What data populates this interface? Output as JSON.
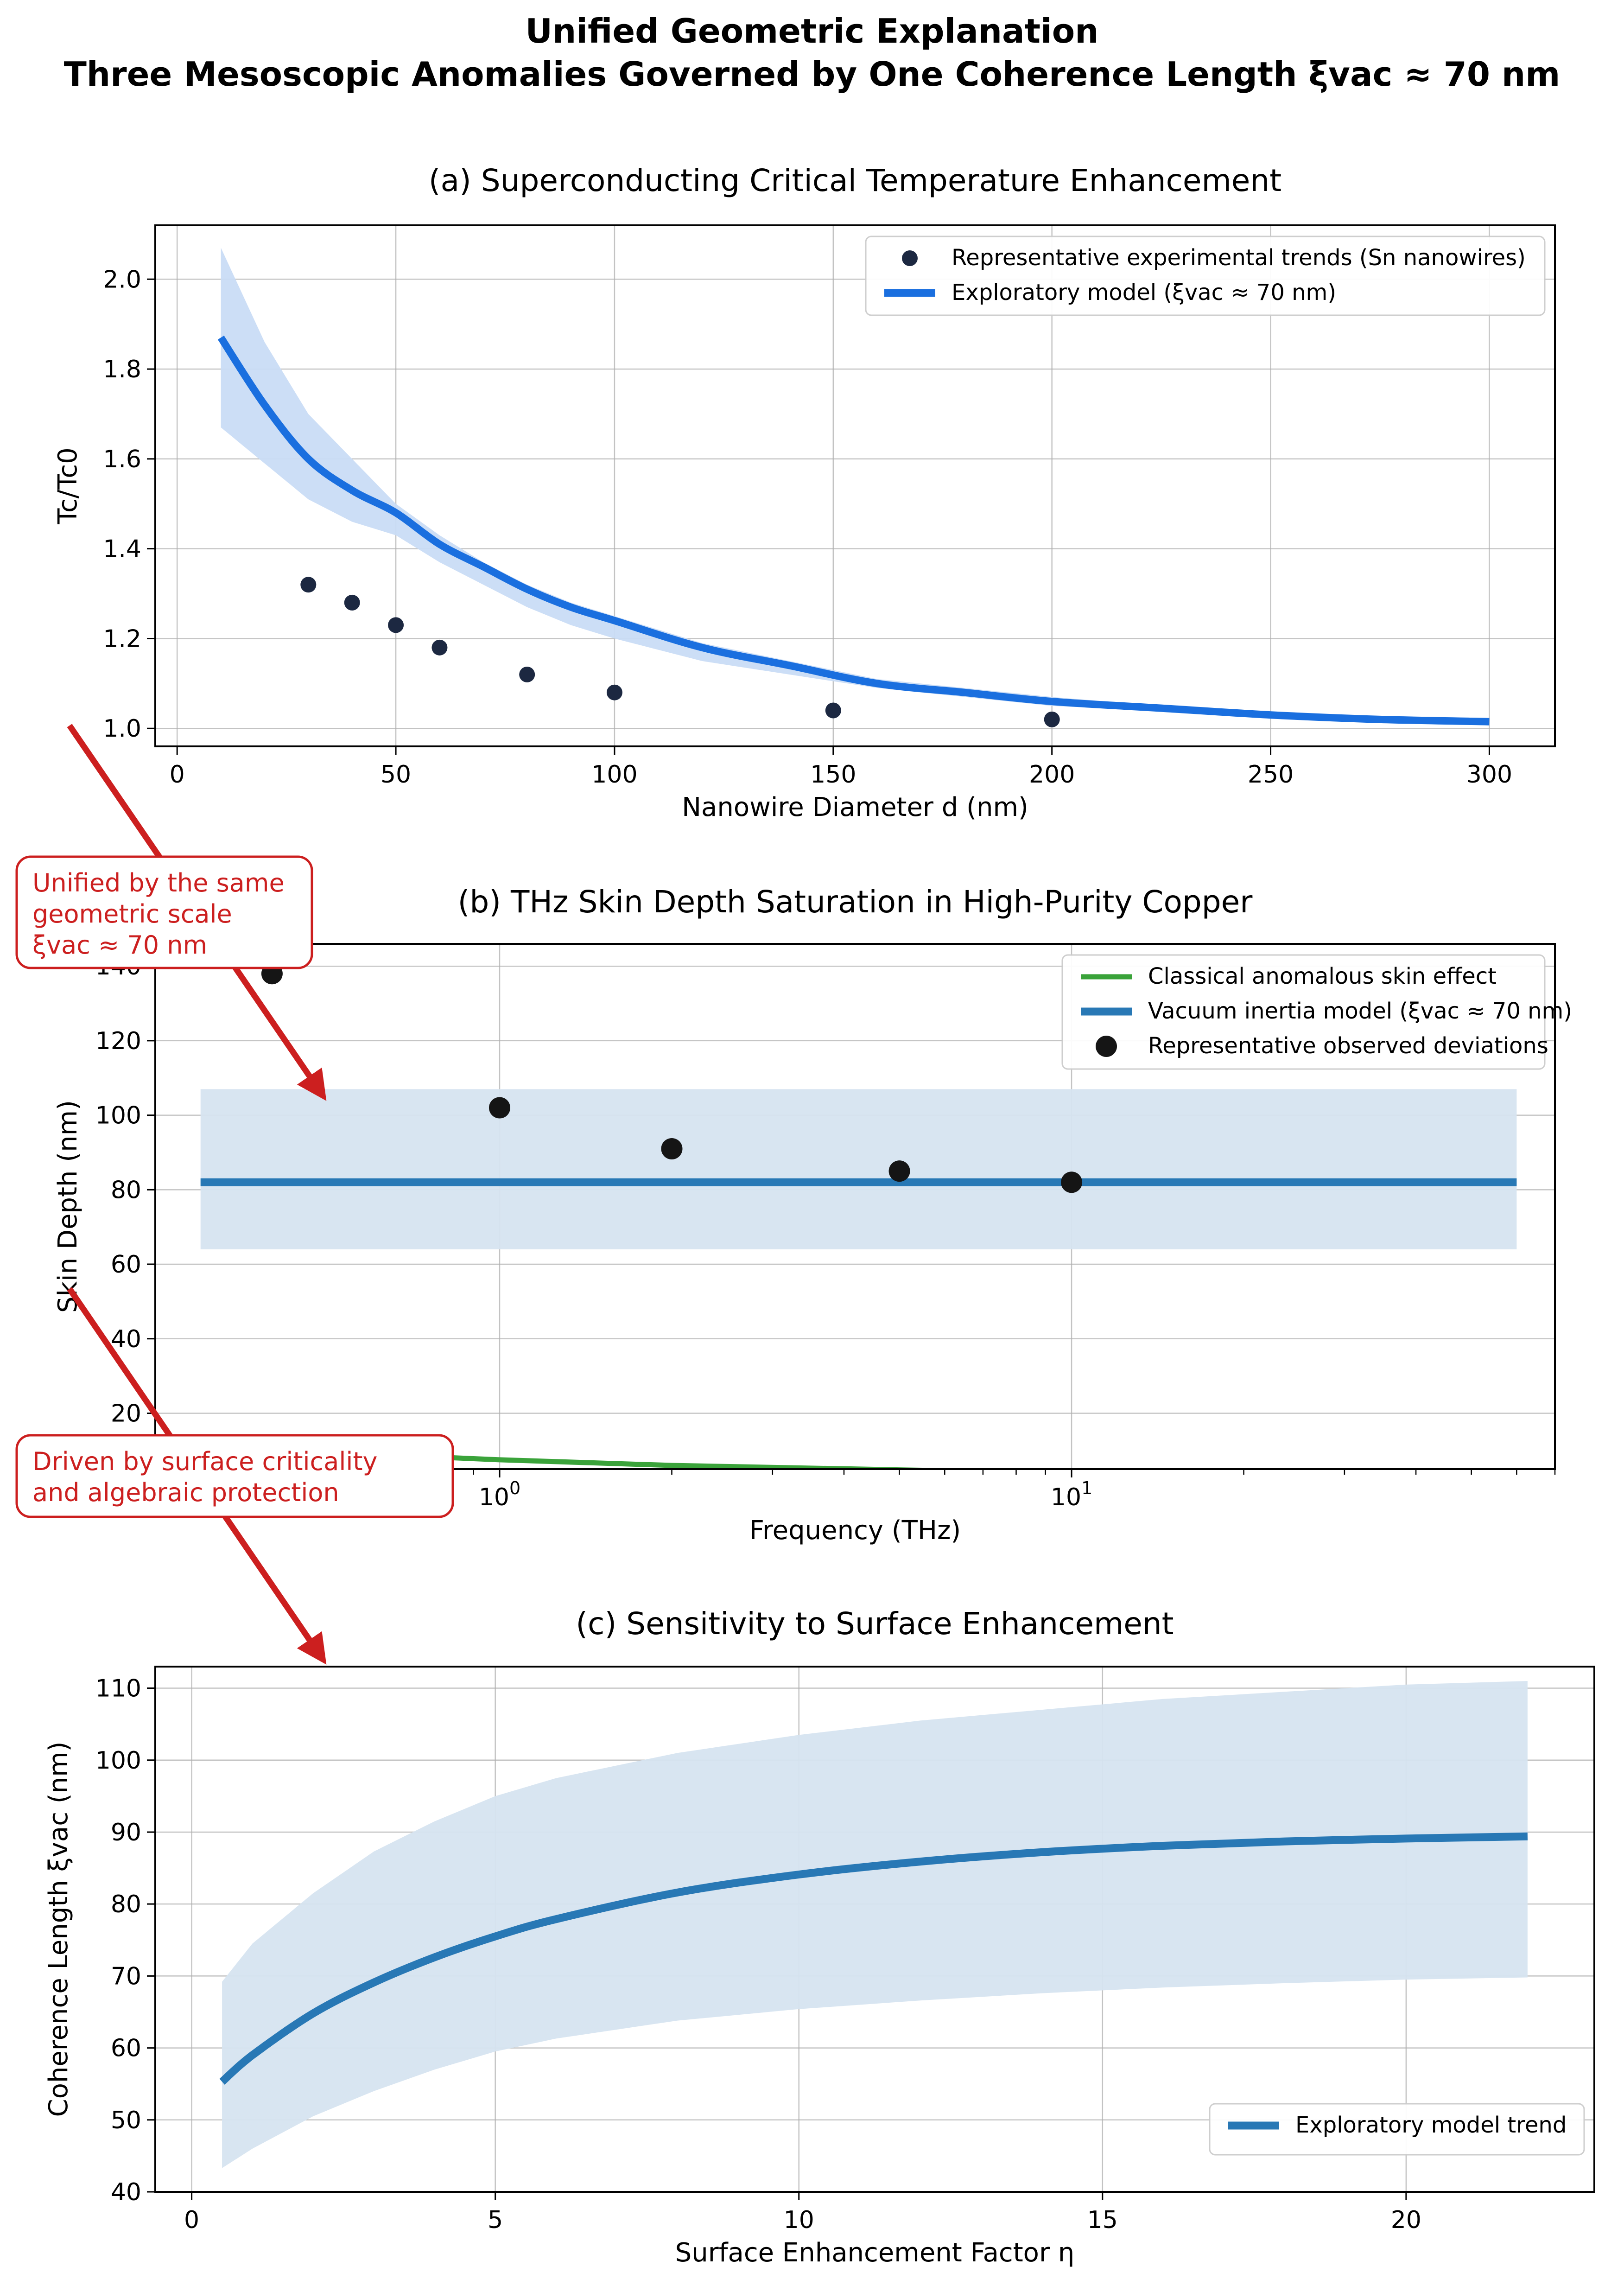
{
  "figure": {
    "title_line1": "Unified Geometric Explanation",
    "title_line2": "Three Mesoscopic Anomalies Governed by One Coherence Length ξvac ≈ 70 nm"
  },
  "colors": {
    "model_blue": "#1a6fdf",
    "band_blue": "#c9dcf5",
    "tab_blue": "#2878b5",
    "band_tab_blue": "#d6e4f0",
    "green": "#3aa33a",
    "data_navy": "#1c2841",
    "data_black": "#151515",
    "annotation_red": "#cc1f1f"
  },
  "annotations": [
    {
      "line1": "Unified by the same",
      "line2": "geometric scale",
      "line3": "ξvac ≈ 70 nm"
    },
    {
      "line1": "Driven by surface criticality",
      "line2": "and algebraic protection",
      "line3": ""
    }
  ],
  "chart_data": [
    {
      "panel": "a",
      "type": "line",
      "title": "(a) Superconducting Critical Temperature Enhancement",
      "xlabel": "Nanowire Diameter d (nm)",
      "ylabel": "Tc/Tc0",
      "xlim": [
        -5,
        315
      ],
      "ylim": [
        0.96,
        2.12
      ],
      "xticks": [
        0,
        50,
        100,
        150,
        200,
        250,
        300
      ],
      "yticks": [
        1.0,
        1.2,
        1.4,
        1.6,
        1.8,
        2.0
      ],
      "ytick_labels": [
        "1.0",
        "1.2",
        "1.4",
        "1.6",
        "1.8",
        "2.0"
      ],
      "grid": true,
      "legend_position": "upper right",
      "series": [
        {
          "name": "Representative experimental trends (Sn nanowires)",
          "kind": "scatter",
          "x": [
            30,
            40,
            50,
            60,
            80,
            100,
            150,
            200
          ],
          "y": [
            1.32,
            1.28,
            1.23,
            1.18,
            1.12,
            1.08,
            1.04,
            1.02
          ]
        },
        {
          "name": "Exploratory model (ξvac ≈ 70 nm)",
          "kind": "line",
          "x": [
            10,
            20,
            30,
            40,
            50,
            60,
            70,
            80,
            90,
            100,
            120,
            140,
            160,
            180,
            200,
            225,
            250,
            275,
            300
          ],
          "y": [
            1.87,
            1.72,
            1.6,
            1.53,
            1.48,
            1.41,
            1.36,
            1.31,
            1.27,
            1.24,
            1.18,
            1.14,
            1.1,
            1.08,
            1.06,
            1.045,
            1.03,
            1.02,
            1.015
          ],
          "band_upper": [
            2.07,
            1.86,
            1.7,
            1.6,
            1.5,
            1.43,
            1.37,
            1.32,
            1.28,
            1.25,
            1.19,
            1.15,
            1.11,
            1.09,
            1.07,
            1.05,
            1.035,
            1.025,
            1.018
          ],
          "band_lower": [
            1.67,
            1.59,
            1.51,
            1.46,
            1.43,
            1.37,
            1.32,
            1.27,
            1.23,
            1.2,
            1.15,
            1.12,
            1.09,
            1.07,
            1.05,
            1.04,
            1.028,
            1.02,
            1.012
          ]
        }
      ]
    },
    {
      "panel": "b",
      "type": "line",
      "title": "(b) THz Skin Depth Saturation in High-Purity Copper",
      "xlabel": "Frequency (THz)",
      "ylabel": "Skin Depth (nm)",
      "xscale": "log",
      "xlim": [
        0.25,
        70
      ],
      "ylim": [
        5,
        146
      ],
      "xticks": [
        1,
        10
      ],
      "xtick_labels": [
        "10^0",
        "10^1"
      ],
      "yticks": [
        20,
        40,
        60,
        80,
        100,
        120,
        140
      ],
      "ytick_labels": [
        "20",
        "40",
        "60",
        "80",
        "100",
        "120",
        "140"
      ],
      "grid": true,
      "legend_position": "upper right",
      "series": [
        {
          "name": "Classical anomalous skin effect",
          "kind": "line",
          "x": [
            0.3,
            0.5,
            1,
            2,
            5,
            10,
            20,
            60
          ],
          "y": [
            11.5,
            9.5,
            7.5,
            6,
            4.8,
            4,
            3.3,
            2.5
          ]
        },
        {
          "name": "Vacuum inertia model (ξvac ≈ 70 nm)",
          "kind": "line",
          "x": [
            0.3,
            60
          ],
          "y": [
            82,
            82
          ],
          "band_upper": [
            107,
            107
          ],
          "band_lower": [
            64,
            64
          ]
        },
        {
          "name": "Representative observed deviations",
          "kind": "scatter",
          "x": [
            0.4,
            1,
            2,
            5,
            10
          ],
          "y": [
            138,
            102,
            91,
            85,
            82
          ]
        }
      ]
    },
    {
      "panel": "c",
      "type": "line",
      "title": "(c) Sensitivity to Surface Enhancement",
      "xlabel": "Surface Enhancement Factor η",
      "ylabel": "Coherence Length ξvac (nm)",
      "xlim": [
        -0.6,
        23.1
      ],
      "ylim": [
        40,
        113
      ],
      "xticks": [
        0,
        5,
        10,
        15,
        20
      ],
      "yticks": [
        40,
        50,
        60,
        70,
        80,
        90,
        100,
        110
      ],
      "grid": true,
      "legend_position": "lower right",
      "series": [
        {
          "name": "Exploratory model trend",
          "kind": "line",
          "x": [
            0.5,
            1,
            2,
            3,
            4,
            5,
            6,
            8,
            10,
            12,
            14,
            16,
            18,
            20,
            22
          ],
          "y": [
            55.3,
            59,
            64.8,
            69.1,
            72.6,
            75.5,
            77.9,
            81.6,
            84.1,
            85.9,
            87.2,
            88.1,
            88.7,
            89.1,
            89.4
          ],
          "band_upper": [
            69.2,
            74.5,
            81.5,
            87.3,
            91.5,
            95,
            97.5,
            101,
            103.5,
            105.5,
            107,
            108.5,
            109.5,
            110.5,
            111
          ],
          "band_lower": [
            43.3,
            46,
            50.5,
            54,
            57,
            59.5,
            61.3,
            63.8,
            65.4,
            66.6,
            67.6,
            68.4,
            69,
            69.5,
            69.8
          ]
        }
      ]
    }
  ]
}
